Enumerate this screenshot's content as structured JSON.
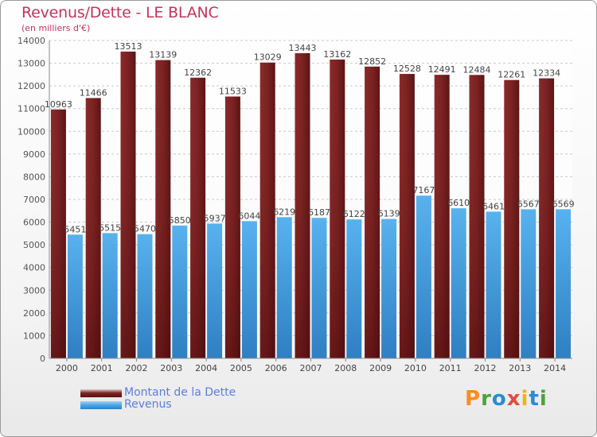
{
  "header": {
    "title": "Revenus/Dette - LE BLANC",
    "subtitle": "(en milliers d'€)"
  },
  "legend": {
    "debt_label": "Montant de la Dette",
    "revenue_label": "Revenus"
  },
  "brand": {
    "letters": [
      "P",
      "r",
      "o",
      "x",
      "i",
      "t",
      "i"
    ]
  },
  "colors": {
    "debt": "#6e1b1b",
    "revenue": "#4aa5e6",
    "title": "#c0365a"
  },
  "chart_data": {
    "type": "bar",
    "title": "Revenus/Dette - LE BLANC",
    "subtitle": "(en milliers d'€)",
    "categories": [
      "2000",
      "2001",
      "2002",
      "2003",
      "2004",
      "2005",
      "2006",
      "2007",
      "2008",
      "2009",
      "2010",
      "2011",
      "2012",
      "2013",
      "2014"
    ],
    "series": [
      {
        "name": "Montant de la Dette",
        "color": "#6e1b1b",
        "values": [
          10963,
          11466,
          13513,
          13139,
          12362,
          11533,
          13029,
          13443,
          13162,
          12852,
          12528,
          12491,
          12484,
          12261,
          12334
        ]
      },
      {
        "name": "Revenus",
        "color": "#4aa5e6",
        "values": [
          5451,
          5515,
          5470,
          5850,
          5937,
          6044,
          6219,
          6187,
          6122,
          6139,
          7167,
          6610,
          6461,
          6567,
          6569
        ]
      }
    ],
    "ylim": [
      0,
      14000
    ],
    "yticks": [
      0,
      1000,
      2000,
      3000,
      4000,
      5000,
      6000,
      7000,
      8000,
      9000,
      10000,
      11000,
      12000,
      13000,
      14000
    ],
    "grid": true,
    "legend": "bottom-left"
  }
}
